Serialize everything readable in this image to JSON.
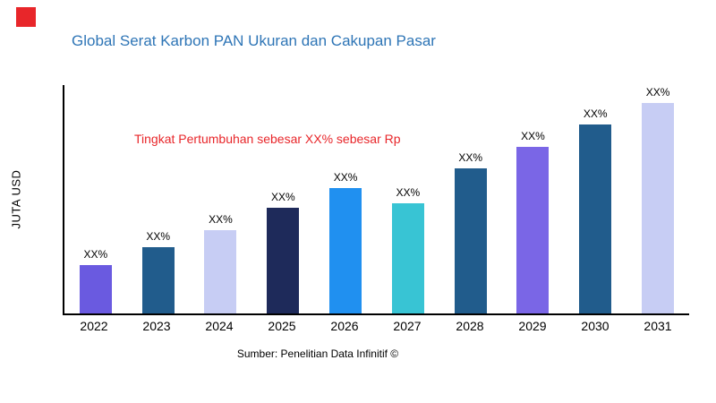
{
  "page": {
    "title": "Global Serat Karbon PAN Ukuran dan Cakupan Pasar",
    "title_color": "#2e75b6",
    "logo_color": "#e8262a",
    "annotation": "Tingkat Pertumbuhan sebesar XX% sebesar Rp",
    "annotation_color": "#e8262a",
    "source": "Sumber: Penelitian Data Infinitif ©"
  },
  "chart_data": {
    "type": "bar",
    "title": "Global Serat Karbon PAN Ukuran dan Cakupan Pasar",
    "xlabel": "",
    "ylabel": "JUTA USD",
    "categories": [
      "2022",
      "2023",
      "2024",
      "2025",
      "2026",
      "2027",
      "2028",
      "2029",
      "2030",
      "2031"
    ],
    "values": [
      55,
      75,
      95,
      120,
      143,
      125,
      165,
      190,
      215,
      240
    ],
    "bar_labels": [
      "XX%",
      "XX%",
      "XX%",
      "XX%",
      "XX%",
      "XX%",
      "XX%",
      "XX%",
      "XX%",
      "XX%"
    ],
    "bar_colors": [
      "#6a5ae0",
      "#215c8c",
      "#c7cdf4",
      "#1e2a5a",
      "#2090f0",
      "#38c4d4",
      "#215c8c",
      "#7a66e6",
      "#215c8c",
      "#c7cdf4"
    ],
    "ylim": [
      0,
      260
    ],
    "grid": false,
    "legend": false,
    "annotation": "Tingkat Pertumbuhan sebesar XX% sebesar Rp",
    "source": "Sumber: Penelitian Data Infinitif ©"
  }
}
